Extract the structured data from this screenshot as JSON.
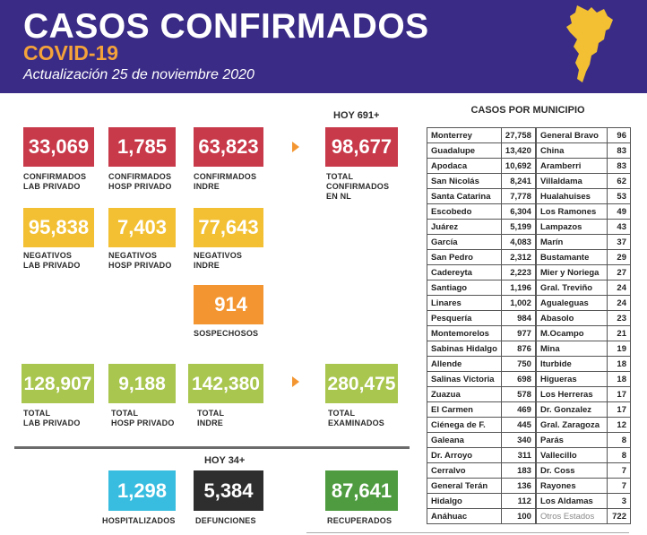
{
  "header": {
    "title": "CASOS CONFIRMADOS",
    "subtitle": "COVID-19",
    "update": "Actualización 25 de noviembre 2020",
    "map_icon": "nuevo-leon-map-icon"
  },
  "colors": {
    "header_bg": "#3a2c86",
    "subtitle": "#f4a23a",
    "red": "#c8394a",
    "yellow": "#f2c032",
    "orange": "#f39631",
    "green": "#a9c64f",
    "cyan": "#38bde0",
    "dark": "#2e2e2e",
    "dark_green": "#4e9b40"
  },
  "confirmados": {
    "hoy": "HOY 691+",
    "lab_privado": {
      "value": "33,069",
      "label1": "CONFIRMADOS",
      "label2": "LAB PRIVADO"
    },
    "hosp_privado": {
      "value": "1,785",
      "label1": "CONFIRMADOS",
      "label2": "HOSP PRIVADO"
    },
    "indre": {
      "value": "63,823",
      "label1": "CONFIRMADOS",
      "label2": "INDRE"
    },
    "total": {
      "value": "98,677",
      "label1": "TOTAL",
      "label2": "CONFIRMADOS",
      "label3": "EN NL"
    }
  },
  "negativos": {
    "lab_privado": {
      "value": "95,838",
      "label1": "NEGATIVOS",
      "label2": "LAB PRIVADO"
    },
    "hosp_privado": {
      "value": "7,403",
      "label1": "NEGATIVOS",
      "label2": "HOSP PRIVADO"
    },
    "indre": {
      "value": "77,643",
      "label1": "NEGATIVOS",
      "label2": "INDRE"
    }
  },
  "sospechosos": {
    "value": "914",
    "label": "SOSPECHOSOS"
  },
  "totales": {
    "lab_privado": {
      "value": "128,907",
      "label1": "TOTAL",
      "label2": "LAB PRIVADO"
    },
    "hosp_privado": {
      "value": "9,188",
      "label1": "TOTAL",
      "label2": "HOSP PRIVADO"
    },
    "indre": {
      "value": "142,380",
      "label1": "TOTAL",
      "label2": "INDRE"
    },
    "examinados": {
      "value": "280,475",
      "label1": "TOTAL",
      "label2": "EXAMINADOS"
    }
  },
  "defunciones_section": {
    "hoy": "HOY 34+",
    "hospitalizados": {
      "value": "1,298",
      "label": "HOSPITALIZADOS"
    },
    "defunciones": {
      "value": "5,384",
      "label": "DEFUNCIONES"
    },
    "recuperados": {
      "value": "87,641",
      "label": "RECUPERADOS"
    }
  },
  "municipios": {
    "title": "CASOS POR MUNICIPIO",
    "col1": [
      [
        "Monterrey",
        "27,758"
      ],
      [
        "Guadalupe",
        "13,420"
      ],
      [
        "Apodaca",
        "10,692"
      ],
      [
        "San Nicolás",
        "8,241"
      ],
      [
        "Santa Catarina",
        "7,778"
      ],
      [
        "Escobedo",
        "6,304"
      ],
      [
        "Juárez",
        "5,199"
      ],
      [
        "García",
        "4,083"
      ],
      [
        "San Pedro",
        "2,312"
      ],
      [
        "Cadereyta",
        "2,223"
      ],
      [
        "Santiago",
        "1,196"
      ],
      [
        "Linares",
        "1,002"
      ],
      [
        "Pesquería",
        "984"
      ],
      [
        "Montemorelos",
        "977"
      ],
      [
        "Sabinas Hidalgo",
        "876"
      ],
      [
        "Allende",
        "750"
      ],
      [
        "Salinas Victoria",
        "698"
      ],
      [
        "Zuazua",
        "578"
      ],
      [
        "El Carmen",
        "469"
      ],
      [
        "Ciénega de F.",
        "445"
      ],
      [
        "Galeana",
        "340"
      ],
      [
        "Dr. Arroyo",
        "311"
      ],
      [
        "Cerralvo",
        "183"
      ],
      [
        "General Terán",
        "136"
      ],
      [
        "Hidalgo",
        "112"
      ],
      [
        "Anáhuac",
        "100"
      ]
    ],
    "col2": [
      [
        "General Bravo",
        "96"
      ],
      [
        "China",
        "83"
      ],
      [
        "Aramberri",
        "83"
      ],
      [
        "Villaldama",
        "62"
      ],
      [
        "Hualahuises",
        "53"
      ],
      [
        "Los Ramones",
        "49"
      ],
      [
        "Lampazos",
        "43"
      ],
      [
        "Marín",
        "37"
      ],
      [
        "Bustamante",
        "29"
      ],
      [
        "Mier y Noriega",
        "27"
      ],
      [
        "Gral. Treviño",
        "24"
      ],
      [
        "Agualeguas",
        "24"
      ],
      [
        "Abasolo",
        "23"
      ],
      [
        "M.Ocampo",
        "21"
      ],
      [
        "Mina",
        "19"
      ],
      [
        "Iturbide",
        "18"
      ],
      [
        "Higueras",
        "18"
      ],
      [
        "Los Herreras",
        "17"
      ],
      [
        "Dr. Gonzalez",
        "17"
      ],
      [
        "Gral. Zaragoza",
        "12"
      ],
      [
        "Parás",
        "8"
      ],
      [
        "Vallecillo",
        "8"
      ],
      [
        "Dr. Coss",
        "7"
      ],
      [
        "Rayones",
        "7"
      ],
      [
        "Los Aldamas",
        "3"
      ],
      [
        "Otros Estados",
        "722"
      ]
    ]
  }
}
